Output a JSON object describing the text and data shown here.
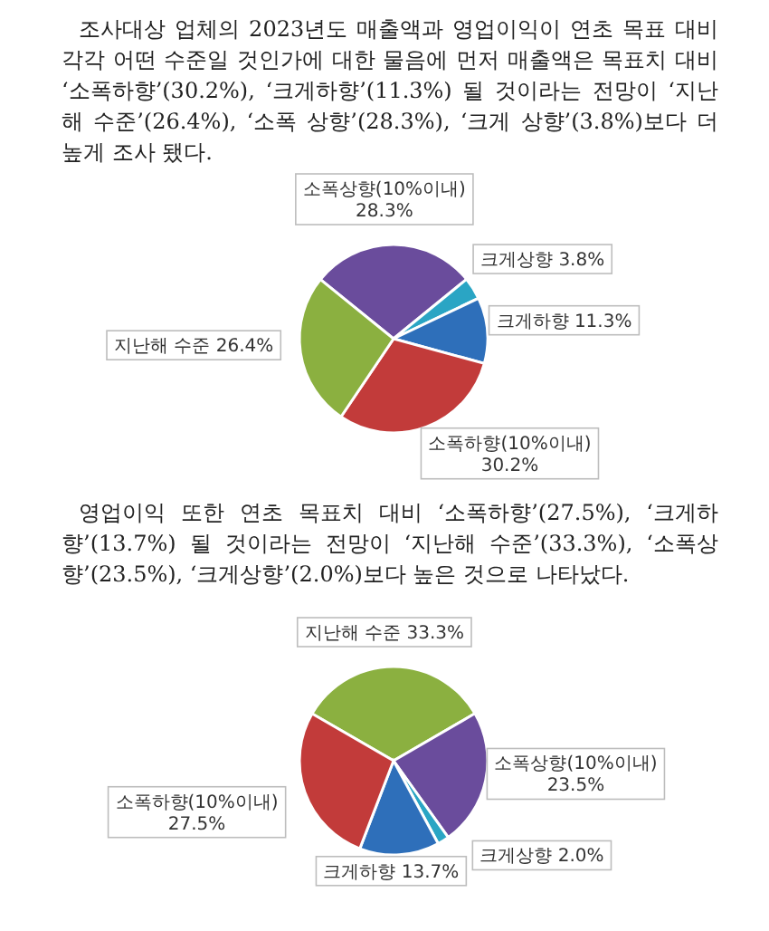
{
  "chart_data": [
    {
      "type": "pie",
      "annotations": [
        "조사대상 업체의 2023년도 매출액과 영업이익이 연초 목표 대비 각각 어떤 수준일 것인가에 대한 물음에 먼저 매출액은 목표치 대비 ‘소폭하향’(30.2%), ‘크게하향’(11.3%) 될 것이라는 전망이 ‘지난해 수준’(26.4%), ‘소폭 상향’(28.3%), ‘크게 상향’(3.8%)보다 더 높게 조사 됐다."
      ],
      "categories": [
        "소폭상향(10%이내)",
        "크게상향",
        "크게하향",
        "소폭하향(10%이내)",
        "지난해 수준"
      ],
      "values": [
        28.3,
        3.8,
        11.3,
        30.2,
        26.4
      ],
      "value_labels": [
        "28.3%",
        "3.8%",
        "11.3%",
        "30.2%",
        "26.4%"
      ],
      "colors": [
        "#6a4c9c",
        "#2aa5c4",
        "#2e6fba",
        "#c23b3a",
        "#8bb040"
      ]
    },
    {
      "type": "pie",
      "annotations": [
        "영업이익 또한 연초 목표치 대비 ‘소폭하향’(27.5%), ‘크게하향’(13.7%) 될 것이라는 전망이 ‘지난해 수준’(33.3%), ‘소폭상향’(23.5%), ‘크게상향’(2.0%)보다 높은 것으로 나타났다."
      ],
      "categories": [
        "지난해 수준",
        "소폭상향(10%이내)",
        "크게상향",
        "크게하향",
        "소폭하향(10%이내)"
      ],
      "values": [
        33.3,
        23.5,
        2.0,
        13.7,
        27.5
      ],
      "value_labels": [
        "33.3%",
        "23.5%",
        "2.0%",
        "13.7%",
        "27.5%"
      ],
      "colors": [
        "#8bb040",
        "#6a4c9c",
        "#2aa5c4",
        "#2e6fba",
        "#c23b3a"
      ]
    }
  ]
}
